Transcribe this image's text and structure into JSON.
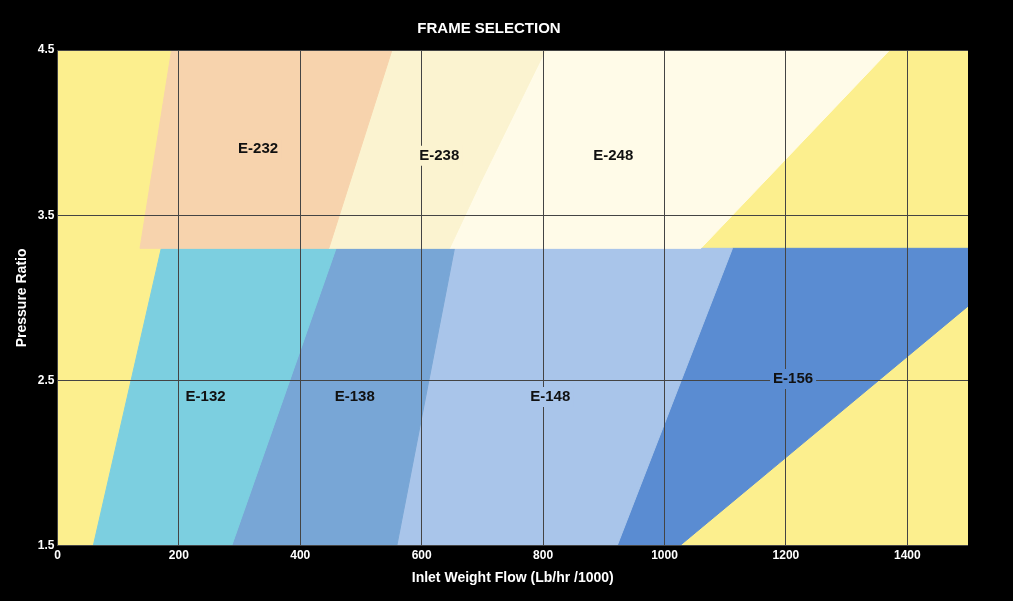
{
  "chart_data": {
    "type": "area",
    "title": "FRAME SELECTION",
    "xlabel": "Inlet Weight Flow (Lb/hr /1000)",
    "ylabel": "Pressure Ratio",
    "xlim": [
      0,
      1500
    ],
    "xticks": [
      0,
      200,
      400,
      600,
      800,
      1000,
      1200,
      1400
    ],
    "ylim": [
      1.5,
      4.5
    ],
    "yticks": [
      1.5,
      2.5,
      3.5,
      4.5
    ],
    "grid": true,
    "legend": false,
    "series": [
      {
        "name": "E-232",
        "color": "#f7d3ad",
        "x": [
          136,
          188,
          551,
          447
        ],
        "values": [
          3.3,
          4.5,
          4.5,
          3.3
        ]
      },
      {
        "name": "E-238",
        "color": "#fbf3d0",
        "x": [
          447,
          551,
          804,
          697,
          646
        ],
        "values": [
          3.3,
          4.5,
          4.5,
          3.7,
          3.3
        ]
      },
      {
        "name": "E-248",
        "color": "#fffbe8",
        "x": [
          646,
          697,
          804,
          1371,
          1060
        ],
        "values": [
          3.3,
          3.7,
          4.5,
          4.5,
          3.3
        ]
      },
      {
        "name": "E-132",
        "color": "#7ccfe0",
        "x": [
          59,
          171,
          459,
          287
        ],
        "values": [
          1.5,
          3.3,
          3.3,
          1.5
        ]
      },
      {
        "name": "E-138",
        "color": "#78a6d6",
        "x": [
          287,
          459,
          654,
          559
        ],
        "values": [
          1.5,
          3.3,
          3.3,
          1.5
        ]
      },
      {
        "name": "E-148",
        "color": "#a9c5ea",
        "x": [
          559,
          654,
          1112,
          922
        ],
        "values": [
          1.5,
          3.3,
          3.3,
          1.5
        ]
      },
      {
        "name": "E-156",
        "color": "#5a8cd2",
        "x": [
          922,
          1112,
          1500,
          1500,
          1025
        ],
        "values": [
          1.5,
          3.3,
          3.3,
          2.95,
          1.5
        ]
      }
    ]
  }
}
